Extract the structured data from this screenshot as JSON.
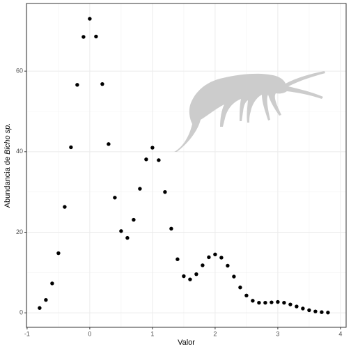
{
  "chart_data": {
    "type": "scatter",
    "xlabel": "Valor",
    "ylabel": "Abundancia de",
    "ylabel_italic": "Bicho sp.",
    "color": "#000000",
    "grid": true,
    "xlim": [
      -1.01,
      4.09
    ],
    "ylim": [
      -3.6,
      76.8
    ],
    "xticks": [
      -1,
      0,
      1,
      2,
      3,
      4
    ],
    "yticks": [
      0,
      20,
      40,
      60
    ],
    "x": [
      -0.8,
      -0.7,
      -0.6,
      -0.5,
      -0.4,
      -0.3,
      -0.2,
      -0.1,
      0,
      0.1,
      0.2,
      0.3,
      0.4,
      0.5,
      0.6,
      0.7,
      0.8,
      0.9,
      1,
      1.1,
      1.2,
      1.3,
      1.4,
      1.5,
      1.6,
      1.7,
      1.8,
      1.9,
      2,
      2.1,
      2.2,
      2.3,
      2.4,
      2.5,
      2.6,
      2.7,
      2.8,
      2.9,
      3,
      3.1,
      3.2,
      3.3,
      3.4,
      3.5,
      3.6,
      3.7,
      3.8
    ],
    "values": [
      1.2,
      3.2,
      7.3,
      14.8,
      26.3,
      41.1,
      56.6,
      68.5,
      73.0,
      68.6,
      56.8,
      41.9,
      28.6,
      20.3,
      18.6,
      23.1,
      30.8,
      38.1,
      41.0,
      37.9,
      30.0,
      20.9,
      13.3,
      9.1,
      8.3,
      9.6,
      11.8,
      13.8,
      14.5,
      13.7,
      11.7,
      9.0,
      6.3,
      4.3,
      3.0,
      2.5,
      2.5,
      2.6,
      2.7,
      2.5,
      2.08,
      1.58,
      1.07,
      0.65,
      0.35,
      0.17,
      0.07
    ]
  }
}
